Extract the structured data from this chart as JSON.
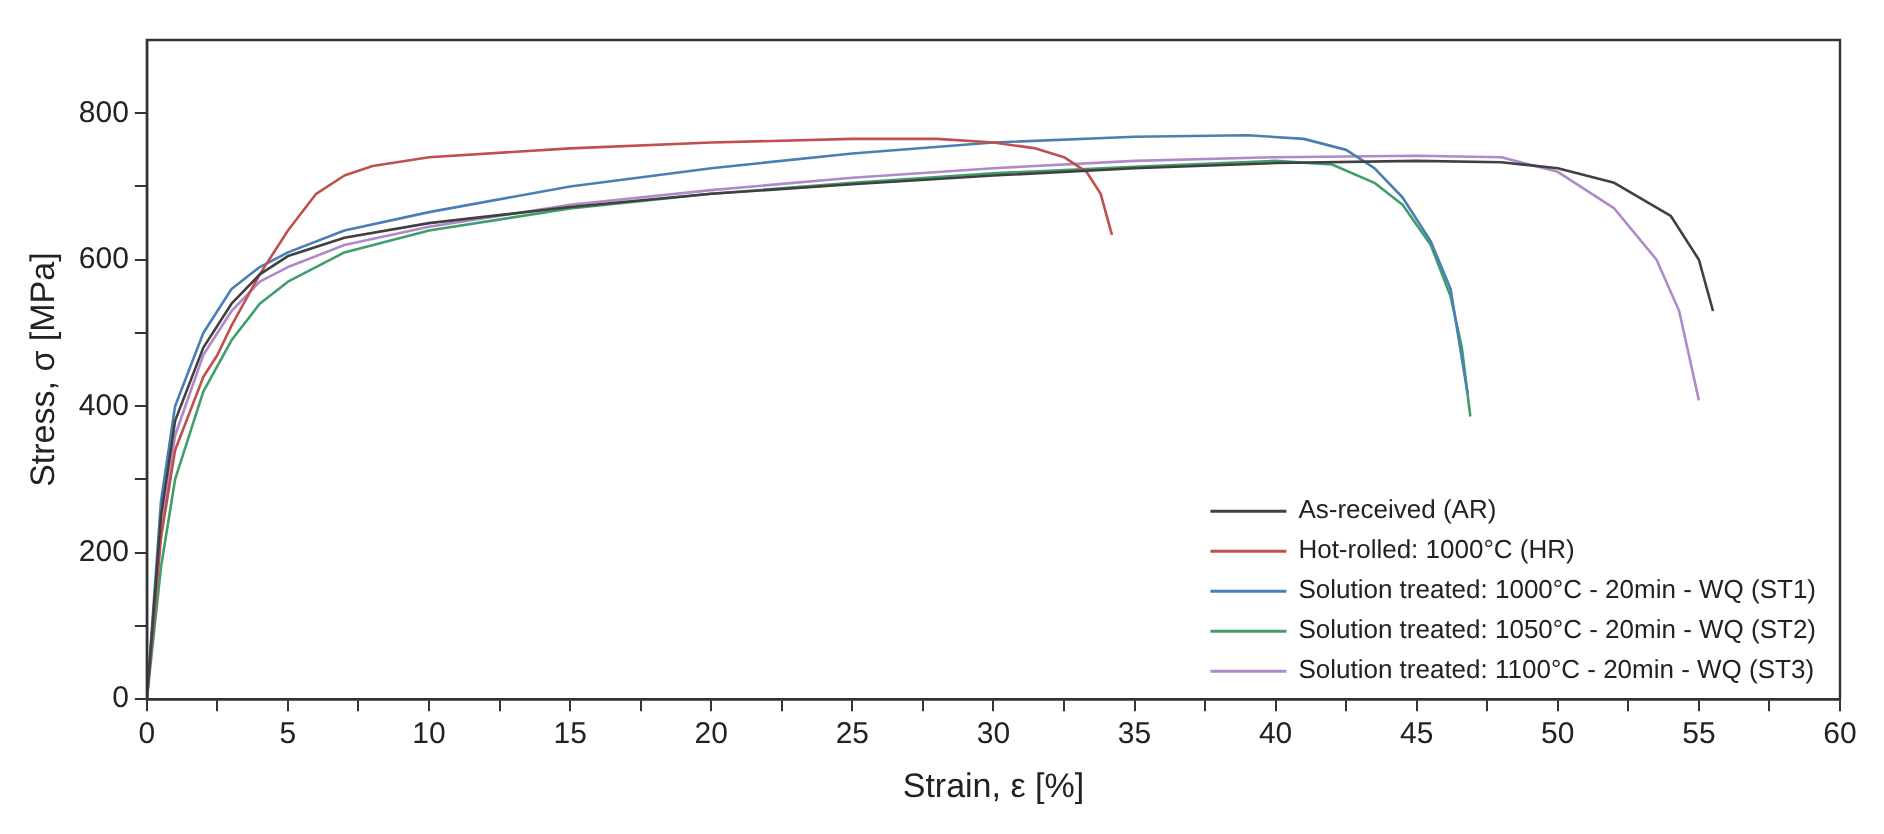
{
  "chart_data": {
    "type": "line",
    "xlabel": "Strain, ε [%]",
    "ylabel": "Stress, σ [MPa]",
    "xlim": [
      0,
      60
    ],
    "ylim": [
      0,
      900
    ],
    "xticks": [
      0,
      {
        "value": 2.5,
        "label": null
      },
      5,
      {
        "value": 7.5,
        "label": null
      },
      10,
      {
        "value": 12.5,
        "label": null
      },
      15,
      {
        "value": 17.5,
        "label": null
      },
      20,
      {
        "value": 22.5,
        "label": null
      },
      25,
      {
        "value": 27.5,
        "label": null
      },
      30,
      {
        "value": 32.5,
        "label": null
      },
      35,
      {
        "value": 37.5,
        "label": null
      },
      40,
      {
        "value": 42.5,
        "label": null
      },
      45,
      {
        "value": 47.5,
        "label": null
      },
      50,
      {
        "value": 52.5,
        "label": null
      },
      55,
      {
        "value": 57.5,
        "label": null
      },
      60
    ],
    "yticks": [
      0,
      {
        "value": 100,
        "label": null
      },
      200,
      {
        "value": 300,
        "label": null
      },
      400,
      {
        "value": 500,
        "label": null
      },
      600,
      {
        "value": 700,
        "label": null
      },
      800
    ],
    "grid": false,
    "legend": "bottom right",
    "marker": "none",
    "line_style": "solid",
    "series": [
      {
        "name": "As-received (AR)",
        "color": "#404040",
        "x": [
          0,
          0.5,
          1,
          2,
          3,
          4,
          5,
          7,
          10,
          15,
          20,
          25,
          30,
          35,
          40,
          45,
          48,
          50,
          52,
          54,
          55,
          55.5
        ],
        "values": [
          0,
          250,
          380,
          480,
          540,
          580,
          605,
          630,
          650,
          672,
          690,
          703,
          715,
          725,
          732,
          735,
          733,
          725,
          705,
          660,
          600,
          530
        ]
      },
      {
        "name": "Hot-rolled: 1000°C (HR)",
        "color": "#c0504d",
        "x": [
          0,
          0.5,
          1,
          2,
          2.5,
          3,
          4,
          5,
          6,
          7,
          8,
          10,
          15,
          20,
          25,
          28,
          30,
          31.5,
          32.5,
          33.3,
          33.8,
          34.2
        ],
        "values": [
          0,
          220,
          340,
          440,
          470,
          510,
          580,
          640,
          690,
          715,
          728,
          740,
          752,
          760,
          765,
          765,
          760,
          752,
          740,
          720,
          690,
          634
        ]
      },
      {
        "name": "Solution treated: 1000°C - 20min - WQ (ST1)",
        "color": "#4a7fb5",
        "x": [
          0,
          0.5,
          1,
          2,
          3,
          4,
          5,
          7,
          10,
          15,
          20,
          25,
          30,
          35,
          39,
          41,
          42.5,
          43.5,
          44.5,
          45.5,
          46.2,
          46.8
        ],
        "values": [
          0,
          270,
          400,
          500,
          560,
          590,
          610,
          640,
          665,
          700,
          725,
          745,
          760,
          768,
          770,
          765,
          750,
          725,
          685,
          625,
          560,
          418
        ]
      },
      {
        "name": "Solution treated: 1050°C - 20min - WQ (ST2)",
        "color": "#3f9f6a",
        "x": [
          0,
          0.5,
          1,
          2,
          3,
          4,
          5,
          7,
          10,
          15,
          20,
          25,
          30,
          35,
          40,
          42,
          43.5,
          44.5,
          45.5,
          46.2,
          46.6,
          46.9
        ],
        "values": [
          0,
          180,
          300,
          420,
          490,
          540,
          570,
          610,
          640,
          670,
          690,
          705,
          718,
          727,
          735,
          730,
          705,
          675,
          620,
          550,
          480,
          386
        ]
      },
      {
        "name": "Solution treated: 1100°C - 20min - WQ (ST3)",
        "color": "#b08ac8",
        "x": [
          0,
          0.5,
          1,
          2,
          3,
          4,
          5,
          7,
          10,
          15,
          20,
          25,
          30,
          35,
          40,
          45,
          48,
          50,
          52,
          53.5,
          54.3,
          55
        ],
        "values": [
          0,
          230,
          360,
          470,
          530,
          570,
          590,
          620,
          645,
          675,
          695,
          712,
          725,
          735,
          740,
          742,
          740,
          720,
          670,
          600,
          530,
          408
        ]
      }
    ]
  }
}
